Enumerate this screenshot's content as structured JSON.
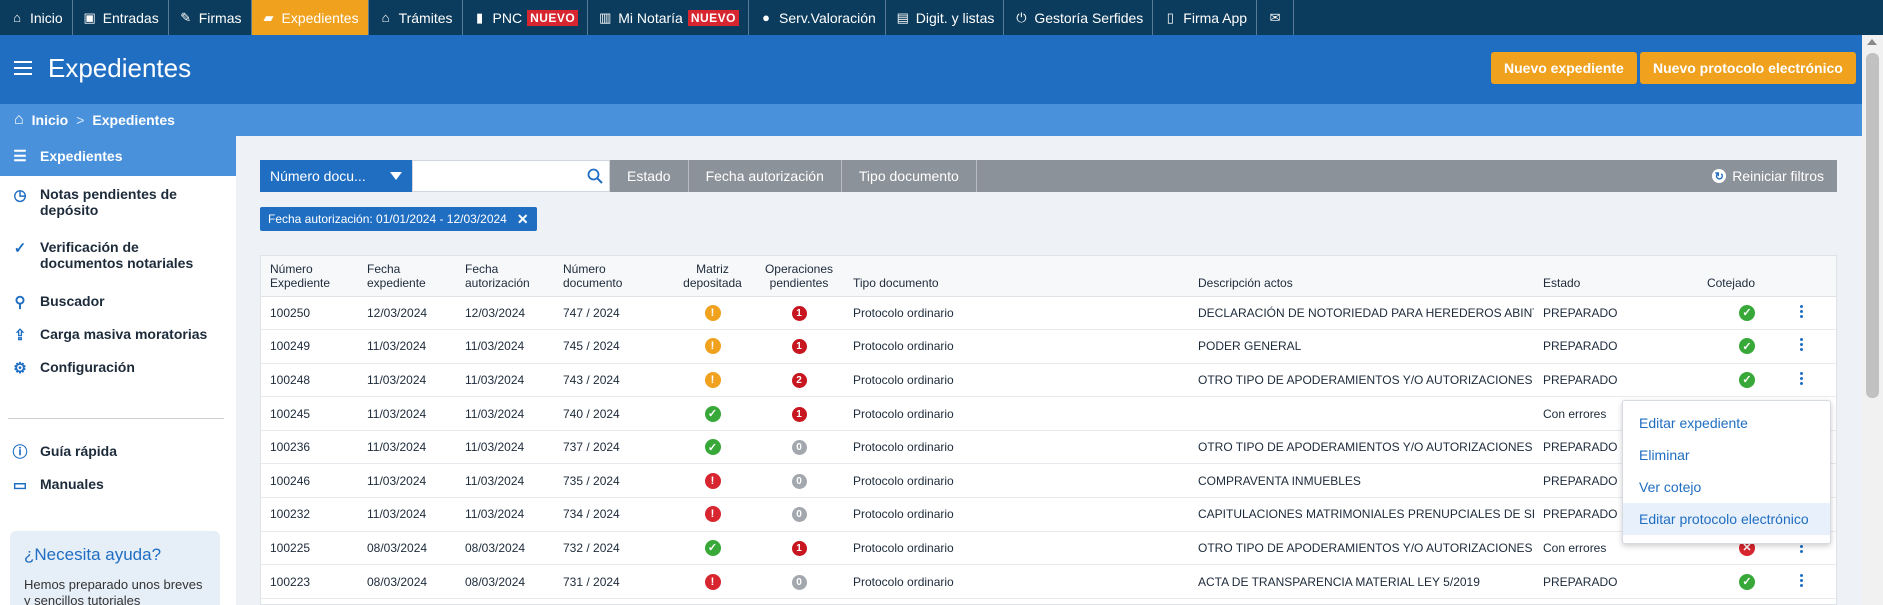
{
  "topnav": {
    "items": [
      {
        "label": "Inicio",
        "icon": "home-icon",
        "glyph": "⌂",
        "active": false
      },
      {
        "label": "Entradas",
        "icon": "inbox-icon",
        "glyph": "▣",
        "active": false
      },
      {
        "label": "Firmas",
        "icon": "pen-icon",
        "glyph": "✎",
        "active": false
      },
      {
        "label": "Expedientes",
        "icon": "folder-icon",
        "glyph": "▰",
        "active": true
      },
      {
        "label": "Trámites",
        "icon": "bank-icon",
        "glyph": "⌂",
        "active": false
      },
      {
        "label": "PNC",
        "icon": "book-icon",
        "glyph": "▮",
        "badge": "NUEVO",
        "active": false
      },
      {
        "label": "Mi Notaría",
        "icon": "bar-chart-icon",
        "glyph": "▥",
        "badge": "NUEVO",
        "active": false
      },
      {
        "label": "Serv.Valoración",
        "icon": "globe-icon",
        "glyph": "●",
        "active": false
      },
      {
        "label": "Digit. y listas",
        "icon": "id-card-icon",
        "glyph": "▤",
        "active": false
      },
      {
        "label": "Gestoría Serfides",
        "icon": "power-icon",
        "glyph": "⏻",
        "active": false
      },
      {
        "label": "Firma App",
        "icon": "mobile-icon",
        "glyph": "▯",
        "active": false
      }
    ],
    "mail_glyph": "✉"
  },
  "header": {
    "title": "Expedientes",
    "btn_new_expediente": "Nuevo expediente",
    "btn_new_protocolo": "Nuevo protocolo electrónico"
  },
  "breadcrumb": {
    "home": "Inicio",
    "sep": ">",
    "current": "Expedientes"
  },
  "sidebar": {
    "items": [
      {
        "label": "Expedientes",
        "icon": "list-icon",
        "glyph": "☰"
      },
      {
        "label": "Notas pendientes de depósito",
        "icon": "clock-icon",
        "glyph": "◷"
      },
      {
        "label": "Verificación de documentos notariales",
        "icon": "check-badge-icon",
        "glyph": "✓"
      },
      {
        "label": "Buscador",
        "icon": "search-icon",
        "glyph": "⚲"
      },
      {
        "label": "Carga masiva moratorias",
        "icon": "upload-icon",
        "glyph": "⇪"
      },
      {
        "label": "Configuración",
        "icon": "gear-icon",
        "glyph": "⚙"
      },
      {
        "label": "Guía rápida",
        "icon": "info-icon",
        "glyph": "ⓘ"
      },
      {
        "label": "Manuales",
        "icon": "book-open-icon",
        "glyph": "▭"
      }
    ],
    "help_title": "¿Necesita ayuda?",
    "help_text": "Hemos preparado unos breves y sencillos tutoriales"
  },
  "filters": {
    "select_value": "Número docu...",
    "search_value": "",
    "tabs": [
      "Estado",
      "Fecha autorización",
      "Tipo documento"
    ],
    "reset_label": "Reiniciar filtros",
    "active_chip": "Fecha autorización: 01/01/2024 - 12/03/2024"
  },
  "table": {
    "headers": [
      "Número Expediente",
      "Fecha expediente",
      "Fecha autorización",
      "Número documento",
      "Matriz depositada",
      "Operaciones pendientes",
      "Tipo documento",
      "Descripción actos",
      "Estado",
      "Cotejado"
    ],
    "rows": [
      {
        "numero": "100250",
        "fecha_exp": "12/03/2024",
        "fecha_aut": "12/03/2024",
        "num_doc": "747 / 2024",
        "matriz": "warn",
        "ops": "1",
        "tipo": "Protocolo ordinario",
        "desc": "DECLARACIÓN DE NOTORIEDAD PARA HEREDEROS ABINTESTATO",
        "estado": "PREPARADO",
        "cotejado": "ok"
      },
      {
        "numero": "100249",
        "fecha_exp": "11/03/2024",
        "fecha_aut": "11/03/2024",
        "num_doc": "745 / 2024",
        "matriz": "warn",
        "ops": "1",
        "tipo": "Protocolo ordinario",
        "desc": "PODER GENERAL",
        "estado": "PREPARADO",
        "cotejado": "ok"
      },
      {
        "numero": "100248",
        "fecha_exp": "11/03/2024",
        "fecha_aut": "11/03/2024",
        "num_doc": "743 / 2024",
        "matriz": "warn",
        "ops": "2",
        "tipo": "Protocolo ordinario",
        "desc": "OTRO TIPO DE APODERAMIENTOS Y/O AUTORIZACIONES",
        "estado": "PREPARADO",
        "cotejado": "ok"
      },
      {
        "numero": "100245",
        "fecha_exp": "11/03/2024",
        "fecha_aut": "11/03/2024",
        "num_doc": "740 / 2024",
        "matriz": "ok",
        "ops": "1",
        "tipo": "Protocolo ordinario",
        "desc": "",
        "estado": "Con errores",
        "cotejado": "none"
      },
      {
        "numero": "100236",
        "fecha_exp": "11/03/2024",
        "fecha_aut": "11/03/2024",
        "num_doc": "737 / 2024",
        "matriz": "ok",
        "ops": "0",
        "tipo": "Protocolo ordinario",
        "desc": "OTRO TIPO DE APODERAMIENTOS Y/O AUTORIZACIONES",
        "estado": "PREPARADO",
        "cotejado": "none"
      },
      {
        "numero": "100246",
        "fecha_exp": "11/03/2024",
        "fecha_aut": "11/03/2024",
        "num_doc": "735 / 2024",
        "matriz": "err",
        "ops": "0",
        "tipo": "Protocolo ordinario",
        "desc": "COMPRAVENTA INMUEBLES",
        "estado": "PREPARADO",
        "cotejado": "none"
      },
      {
        "numero": "100232",
        "fecha_exp": "11/03/2024",
        "fecha_aut": "11/03/2024",
        "num_doc": "734 / 2024",
        "matriz": "err",
        "ops": "0",
        "tipo": "Protocolo ordinario",
        "desc": "CAPITULACIONES MATRIMONIALES PRENUPCIALES DE SEPARACIÓN",
        "estado": "PREPARADO",
        "cotejado": "none"
      },
      {
        "numero": "100225",
        "fecha_exp": "08/03/2024",
        "fecha_aut": "08/03/2024",
        "num_doc": "732 / 2024",
        "matriz": "ok",
        "ops": "1",
        "tipo": "Protocolo ordinario",
        "desc": "OTRO TIPO DE APODERAMIENTOS Y/O AUTORIZACIONES",
        "estado": "Con errores",
        "cotejado": "err"
      },
      {
        "numero": "100223",
        "fecha_exp": "08/03/2024",
        "fecha_aut": "08/03/2024",
        "num_doc": "731 / 2024",
        "matriz": "err",
        "ops": "0",
        "tipo": "Protocolo ordinario",
        "desc": "ACTA DE TRANSPARENCIA MATERIAL LEY 5/2019",
        "estado": "PREPARADO",
        "cotejado": "ok"
      }
    ]
  },
  "context_menu": {
    "items": [
      "Editar expediente",
      "Eliminar",
      "Ver cotejo",
      "Editar protocolo electrónico"
    ]
  },
  "colors": {
    "nav": "#0b3c5d",
    "header": "#1f6ec2",
    "accent": "#f0a21f",
    "ok": "#38a839",
    "error": "#d7262f"
  }
}
